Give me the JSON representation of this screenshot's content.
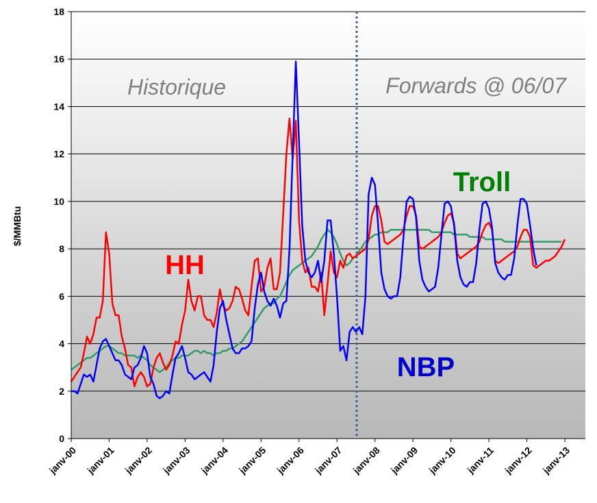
{
  "chart_data": {
    "type": "line",
    "ylabel": "$/MMBtu",
    "annotations": [
      "Historique",
      "Forwards @ 06/07"
    ],
    "ylim": [
      0,
      18
    ],
    "yticks": [
      0,
      2,
      4,
      6,
      8,
      10,
      12,
      14,
      16,
      18
    ],
    "grid": true,
    "categories": [
      "janv-00",
      null,
      null,
      null,
      null,
      null,
      null,
      null,
      null,
      null,
      null,
      null,
      "janv-01",
      null,
      null,
      null,
      null,
      null,
      null,
      null,
      null,
      null,
      null,
      null,
      "janv-02",
      null,
      null,
      null,
      null,
      null,
      null,
      null,
      null,
      null,
      null,
      null,
      "janv-03",
      null,
      null,
      null,
      null,
      null,
      null,
      null,
      null,
      null,
      null,
      null,
      "janv-04",
      null,
      null,
      null,
      null,
      null,
      null,
      null,
      null,
      null,
      null,
      null,
      "janv-05",
      null,
      null,
      null,
      null,
      null,
      null,
      null,
      null,
      null,
      null,
      null,
      "janv-06",
      null,
      null,
      null,
      null,
      null,
      null,
      null,
      null,
      null,
      null,
      null,
      "janv-07",
      null,
      null,
      null,
      null,
      null,
      null,
      null,
      null,
      null,
      null,
      null,
      "janv-08",
      null,
      null,
      null,
      null,
      null,
      null,
      null,
      null,
      null,
      null,
      null,
      "janv-09",
      null,
      null,
      null,
      null,
      null,
      null,
      null,
      null,
      null,
      null,
      null,
      "janv-10",
      null,
      null,
      null,
      null,
      null,
      null,
      null,
      null,
      null,
      null,
      null,
      "janv-11",
      null,
      null,
      null,
      null,
      null,
      null,
      null,
      null,
      null,
      null,
      null,
      "janv-12",
      null,
      null,
      null,
      null,
      null,
      null,
      null,
      null,
      null,
      null,
      null,
      "janv-13"
    ],
    "series": [
      {
        "name": "HH",
        "color": "#ff0000",
        "values": [
          2.4,
          2.6,
          2.8,
          3.0,
          3.6,
          4.3,
          4.0,
          4.4,
          5.1,
          5.1,
          5.8,
          8.7,
          7.8,
          5.7,
          5.2,
          5.2,
          4.3,
          3.8,
          3.1,
          3.0,
          2.2,
          2.6,
          2.8,
          2.6,
          2.2,
          2.3,
          3.0,
          3.4,
          3.6,
          3.2,
          2.9,
          3.1,
          3.5,
          4.1,
          4.0,
          4.8,
          5.4,
          6.7,
          5.8,
          5.4,
          6.0,
          6.0,
          5.2,
          5.0,
          5.0,
          4.7,
          5.3,
          6.3,
          5.6,
          5.4,
          5.5,
          5.8,
          6.4,
          6.3,
          5.9,
          5.4,
          5.2,
          6.4,
          7.5,
          7.6,
          6.2,
          6.4,
          7.2,
          7.6,
          6.3,
          6.3,
          7.0,
          9.5,
          12.0,
          13.5,
          11.8,
          13.4,
          9.2,
          7.5,
          7.0,
          7.2,
          6.4,
          6.4,
          6.2,
          7.0,
          5.2,
          6.5,
          7.9,
          7.0,
          6.8,
          7.5,
          7.2,
          7.7,
          7.8,
          7.6,
          7.7,
          7.8,
          7.9,
          8.0,
          8.4,
          9.4,
          9.8,
          9.8,
          9.2,
          8.3,
          8.2,
          8.3,
          8.4,
          8.5,
          8.6,
          8.8,
          9.4,
          9.8,
          9.8,
          9.4,
          8.1,
          8.0,
          8.1,
          8.2,
          8.3,
          8.4,
          8.5,
          8.7,
          9.1,
          9.4,
          9.5,
          9.1,
          7.8,
          7.6,
          7.7,
          7.8,
          7.9,
          8.0,
          8.1,
          8.3,
          8.7,
          9.0,
          9.1,
          8.8,
          7.5,
          7.4,
          7.5,
          7.6,
          7.7,
          7.8,
          7.9,
          8.1,
          8.5,
          8.8,
          8.8,
          8.5,
          7.3,
          7.2,
          7.3,
          7.4,
          7.5,
          7.5,
          7.6,
          7.7,
          7.9,
          8.1,
          8.4
        ]
      },
      {
        "name": "NBP",
        "color": "#0000ff",
        "values": [
          2.0,
          2.0,
          1.9,
          2.3,
          2.7,
          2.6,
          2.7,
          2.4,
          3.1,
          3.8,
          4.1,
          4.2,
          3.9,
          3.6,
          3.3,
          3.3,
          3.1,
          2.7,
          2.6,
          2.5,
          3.0,
          3.1,
          3.4,
          3.9,
          3.6,
          2.6,
          2.3,
          1.8,
          1.7,
          1.8,
          2.0,
          1.9,
          2.7,
          3.4,
          3.6,
          3.9,
          3.4,
          2.8,
          2.7,
          2.5,
          2.6,
          2.7,
          2.8,
          2.6,
          2.4,
          3.1,
          4.5,
          5.5,
          5.8,
          5.0,
          4.4,
          3.8,
          3.6,
          3.6,
          3.8,
          3.8,
          3.9,
          4.1,
          5.5,
          6.5,
          7.0,
          6.2,
          5.8,
          5.6,
          5.9,
          5.6,
          5.1,
          5.7,
          5.8,
          8.0,
          12.0,
          15.9,
          12.5,
          9.0,
          7.5,
          7.0,
          6.8,
          7.0,
          7.5,
          6.6,
          7.5,
          9.2,
          9.2,
          7.8,
          6.0,
          3.7,
          3.9,
          3.3,
          4.5,
          4.7,
          4.5,
          4.7,
          4.4,
          6.0,
          10.3,
          11.0,
          10.7,
          9.0,
          7.0,
          6.3,
          6.0,
          5.9,
          6.0,
          6.0,
          6.8,
          8.5,
          10.0,
          10.2,
          10.1,
          9.3,
          7.5,
          6.7,
          6.4,
          6.2,
          6.3,
          6.4,
          7.2,
          8.6,
          9.9,
          10.0,
          9.8,
          9.0,
          7.5,
          6.8,
          6.5,
          6.4,
          6.6,
          6.6,
          7.4,
          8.8,
          9.9,
          10.0,
          9.7,
          8.9,
          7.4,
          7.0,
          6.8,
          6.7,
          6.9,
          6.9,
          7.6,
          9.0,
          10.1,
          10.1,
          9.9,
          9.0,
          8.0,
          7.3,
          null,
          null,
          null,
          null,
          null,
          null,
          null,
          null,
          null
        ]
      },
      {
        "name": "Troll",
        "color": "#339966",
        "values": [
          2.9,
          3.0,
          3.1,
          3.2,
          3.3,
          3.4,
          3.4,
          3.5,
          3.6,
          3.7,
          3.8,
          3.9,
          3.9,
          3.8,
          3.7,
          3.6,
          3.6,
          3.5,
          3.5,
          3.5,
          3.5,
          3.4,
          3.5,
          3.4,
          3.3,
          3.1,
          3.0,
          2.9,
          2.8,
          2.9,
          3.0,
          3.2,
          3.3,
          3.4,
          3.4,
          3.5,
          3.5,
          3.5,
          3.6,
          3.7,
          3.7,
          3.6,
          3.7,
          3.6,
          3.6,
          3.5,
          3.6,
          3.6,
          3.7,
          3.7,
          3.8,
          3.8,
          3.9,
          4.0,
          4.1,
          4.3,
          4.5,
          4.7,
          4.9,
          5.1,
          5.3,
          5.5,
          5.6,
          5.7,
          5.7,
          5.9,
          6.0,
          6.3,
          6.6,
          6.9,
          7.1,
          7.2,
          7.3,
          7.4,
          7.5,
          7.6,
          7.7,
          7.9,
          8.1,
          8.4,
          8.6,
          8.8,
          8.7,
          8.5,
          8.2,
          7.8,
          7.5,
          7.3,
          7.4,
          7.6,
          7.7,
          7.9,
          8.1,
          8.3,
          8.4,
          8.5,
          8.6,
          8.6,
          8.7,
          8.7,
          8.7,
          8.8,
          8.8,
          8.8,
          8.8,
          8.8,
          8.8,
          8.8,
          8.8,
          8.8,
          8.8,
          8.8,
          8.8,
          8.8,
          8.7,
          8.7,
          8.7,
          8.7,
          8.7,
          8.7,
          8.7,
          8.6,
          8.6,
          8.6,
          8.6,
          8.6,
          8.5,
          8.5,
          8.5,
          8.5,
          8.5,
          8.4,
          8.4,
          8.4,
          8.4,
          8.4,
          8.4,
          8.3,
          8.3,
          8.3,
          8.3,
          8.3,
          8.3,
          8.3,
          8.3,
          8.3,
          8.3,
          8.3,
          8.3,
          8.3,
          8.3,
          8.3,
          8.3,
          8.3,
          8.3,
          8.3,
          null
        ]
      }
    ]
  }
}
